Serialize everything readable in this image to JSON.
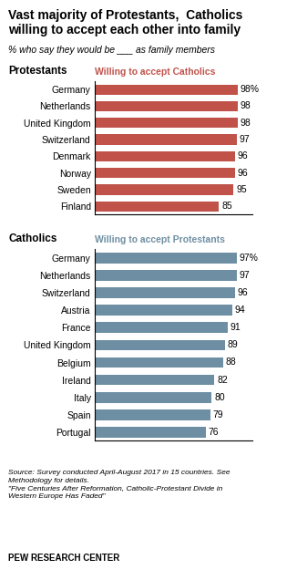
{
  "title": "Vast majority of Protestants,  Catholics\nwilling to accept each other into family",
  "subtitle": "% who say they would be ___ as family members",
  "annotations": [
    "Source: Survey conducted April-August 2017 in 15 countries. See\nMethodology for details.\n\"Five Centuries After Reformation, Catholic-Protestant Divide in\nWestern Europe Has Faded\"",
    "PEW RESEARCH CENTER"
  ],
  "chart_data": [
    {
      "type": "bar",
      "orientation": "horizontal",
      "title": "Protestants",
      "subtitle": "Willing to accept Catholics",
      "categories": [
        "Germany",
        "Netherlands",
        "United Kingdom",
        "Switzerland",
        "Denmark",
        "Norway",
        "Sweden",
        "Finland"
      ],
      "values": [
        98,
        98,
        98,
        97,
        96,
        96,
        95,
        85
      ],
      "value_labels": [
        "98%",
        "98",
        "98",
        "97",
        "96",
        "96",
        "95",
        "85"
      ],
      "data_labels": true,
      "color": "#c0524a",
      "xlim": [
        0,
        108
      ],
      "xticks": [],
      "tick_labels": "y",
      "grid": false
    },
    {
      "type": "bar",
      "orientation": "horizontal",
      "title": "Catholics",
      "subtitle": "Willing to accept Protestants",
      "categories": [
        "Germany",
        "Netherlands",
        "Switzerland",
        "Austria",
        "France",
        "United Kingdom",
        "Belgium",
        "Ireland",
        "Italy",
        "Spain",
        "Portugal"
      ],
      "values": [
        97,
        97,
        96,
        94,
        91,
        89,
        88,
        82,
        80,
        79,
        76
      ],
      "value_labels": [
        "97%",
        "97",
        "96",
        "94",
        "91",
        "89",
        "88",
        "82",
        "80",
        "79",
        "76"
      ],
      "data_labels": true,
      "color": "#6e8fa3",
      "xlim": [
        0,
        108
      ],
      "xticks": [],
      "tick_labels": "y",
      "grid": false
    }
  ]
}
